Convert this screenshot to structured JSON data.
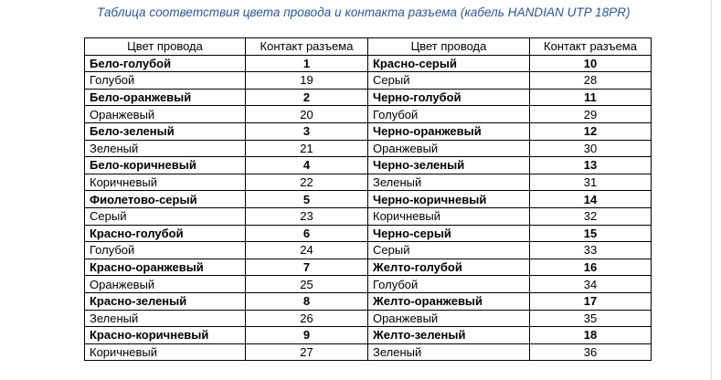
{
  "title": "Таблица соответствия цвета провода и контакта разъема (кабель HANDIAN  UTP 18PR)",
  "table": {
    "headers": [
      "Цвет провода",
      "Контакт разъема",
      "Цвет провода",
      "Контакт разъема"
    ],
    "rows": [
      {
        "bold": true,
        "color1": "Бело-голубой",
        "pin1": "1",
        "color2": "Красно-серый",
        "pin2": "10"
      },
      {
        "bold": false,
        "color1": "Голубой",
        "pin1": "19",
        "color2": "Серый",
        "pin2": "28"
      },
      {
        "bold": true,
        "color1": "Бело-оранжевый",
        "pin1": "2",
        "color2": "Черно-голубой",
        "pin2": "11"
      },
      {
        "bold": false,
        "color1": "Оранжевый",
        "pin1": "20",
        "color2": "Голубой",
        "pin2": "29"
      },
      {
        "bold": true,
        "color1": "Бело-зеленый",
        "pin1": "3",
        "color2": "Черно-оранжевый",
        "pin2": "12"
      },
      {
        "bold": false,
        "color1": "Зеленый",
        "pin1": "21",
        "color2": "Оранжевый",
        "pin2": "30"
      },
      {
        "bold": true,
        "color1": "Бело-коричневый",
        "pin1": "4",
        "color2": "Черно-зеленый",
        "pin2": "13"
      },
      {
        "bold": false,
        "color1": "Коричневый",
        "pin1": "22",
        "color2": "Зеленый",
        "pin2": "31"
      },
      {
        "bold": true,
        "color1": "Фиолетово-серый",
        "pin1": "5",
        "color2": "Черно-коричневый",
        "pin2": "14"
      },
      {
        "bold": false,
        "color1": "Серый",
        "pin1": "23",
        "color2": "Коричневый",
        "pin2": "32"
      },
      {
        "bold": true,
        "color1": "Красно-голубой",
        "pin1": "6",
        "color2": "Черно-серый",
        "pin2": "15"
      },
      {
        "bold": false,
        "color1": "Голубой",
        "pin1": "24",
        "color2": "Серый",
        "pin2": "33"
      },
      {
        "bold": true,
        "color1": "Красно-оранжевый",
        "pin1": "7",
        "color2": "Желто-голубой",
        "pin2": "16"
      },
      {
        "bold": false,
        "color1": "Оранжевый",
        "pin1": "25",
        "color2": "Голубой",
        "pin2": "34"
      },
      {
        "bold": true,
        "color1": "Красно-зеленый",
        "pin1": "8",
        "color2": "Желто-оранжевый",
        "pin2": "17"
      },
      {
        "bold": false,
        "color1": "Зеленый",
        "pin1": "26",
        "color2": "Оранжевый",
        "pin2": "35"
      },
      {
        "bold": true,
        "color1": "Красно-коричневый",
        "pin1": "9",
        "color2": "Желто-зеленый",
        "pin2": "18"
      },
      {
        "bold": false,
        "color1": "Коричневый",
        "pin1": "27",
        "color2": "Зеленый",
        "pin2": "36"
      }
    ]
  },
  "colors": {
    "title": "#2e5597",
    "border": "#000000"
  }
}
